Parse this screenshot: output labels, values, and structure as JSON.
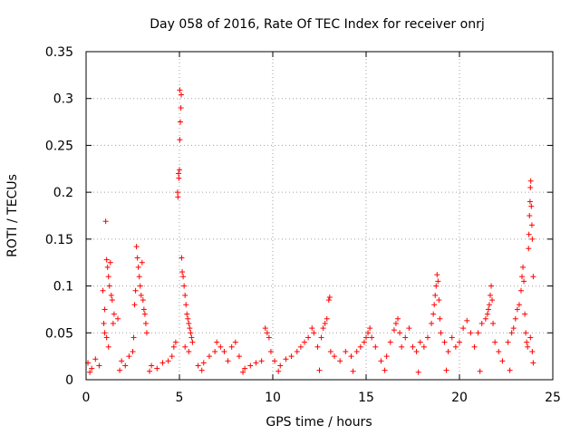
{
  "chart_data": {
    "type": "scatter",
    "title": "Day 058 of 2016, Rate Of TEC Index for receiver onrj",
    "xlabel": "GPS time / hours",
    "ylabel": "ROTI / TECUs",
    "xlim": [
      0,
      25
    ],
    "ylim": [
      0,
      0.35
    ],
    "xticks": [
      0,
      5,
      10,
      15,
      20,
      25
    ],
    "xtick_labels": [
      "0",
      "5",
      "10",
      "15",
      "20",
      "25"
    ],
    "yticks": [
      0,
      0.05,
      0.1,
      0.15,
      0.2,
      0.25,
      0.3,
      0.35
    ],
    "ytick_labels": [
      "0",
      "0.05",
      "0.1",
      "0.15",
      "0.2",
      "0.25",
      "0.3",
      "0.35"
    ],
    "grid": true,
    "marker": "+",
    "marker_color": "#ff0000",
    "series": [
      {
        "name": "ROTI",
        "points": [
          [
            0.1,
            0.018
          ],
          [
            0.3,
            0.012
          ],
          [
            0.5,
            0.022
          ],
          [
            0.7,
            0.015
          ],
          [
            0.9,
            0.095
          ],
          [
            1.0,
            0.075
          ],
          [
            1.05,
            0.169
          ],
          [
            1.1,
            0.128
          ],
          [
            1.15,
            0.12
          ],
          [
            1.2,
            0.11
          ],
          [
            1.25,
            0.1
          ],
          [
            1.3,
            0.125
          ],
          [
            1.35,
            0.09
          ],
          [
            1.4,
            0.085
          ],
          [
            1.45,
            0.06
          ],
          [
            1.5,
            0.07
          ],
          [
            1.0,
            0.05
          ],
          [
            1.1,
            0.045
          ],
          [
            1.2,
            0.035
          ],
          [
            0.95,
            0.06
          ],
          [
            1.7,
            0.065
          ],
          [
            1.9,
            0.02
          ],
          [
            2.1,
            0.015
          ],
          [
            2.3,
            0.025
          ],
          [
            2.5,
            0.03
          ],
          [
            2.7,
            0.142
          ],
          [
            2.75,
            0.13
          ],
          [
            2.8,
            0.12
          ],
          [
            2.85,
            0.11
          ],
          [
            2.9,
            0.1
          ],
          [
            2.95,
            0.09
          ],
          [
            3.0,
            0.125
          ],
          [
            3.05,
            0.085
          ],
          [
            3.1,
            0.075
          ],
          [
            3.15,
            0.07
          ],
          [
            3.2,
            0.06
          ],
          [
            3.25,
            0.05
          ],
          [
            2.6,
            0.08
          ],
          [
            2.65,
            0.095
          ],
          [
            2.55,
            0.045
          ],
          [
            3.5,
            0.015
          ],
          [
            3.8,
            0.012
          ],
          [
            4.1,
            0.018
          ],
          [
            4.4,
            0.02
          ],
          [
            4.6,
            0.025
          ],
          [
            4.7,
            0.035
          ],
          [
            4.8,
            0.04
          ],
          [
            4.9,
            0.2
          ],
          [
            4.92,
            0.195
          ],
          [
            4.95,
            0.22
          ],
          [
            4.97,
            0.215
          ],
          [
            5.0,
            0.224
          ],
          [
            5.02,
            0.256
          ],
          [
            5.05,
            0.275
          ],
          [
            5.08,
            0.29
          ],
          [
            5.1,
            0.304
          ],
          [
            5.02,
            0.309
          ],
          [
            5.12,
            0.13
          ],
          [
            5.15,
            0.115
          ],
          [
            5.2,
            0.11
          ],
          [
            5.25,
            0.1
          ],
          [
            5.3,
            0.09
          ],
          [
            5.35,
            0.08
          ],
          [
            5.4,
            0.07
          ],
          [
            5.45,
            0.065
          ],
          [
            5.5,
            0.06
          ],
          [
            5.55,
            0.055
          ],
          [
            5.6,
            0.05
          ],
          [
            5.65,
            0.045
          ],
          [
            5.7,
            0.04
          ],
          [
            5.3,
            0.035
          ],
          [
            5.5,
            0.03
          ],
          [
            6.0,
            0.015
          ],
          [
            6.3,
            0.018
          ],
          [
            6.6,
            0.025
          ],
          [
            6.9,
            0.03
          ],
          [
            7.0,
            0.04
          ],
          [
            7.2,
            0.035
          ],
          [
            7.4,
            0.03
          ],
          [
            7.6,
            0.02
          ],
          [
            7.8,
            0.035
          ],
          [
            8.0,
            0.04
          ],
          [
            8.2,
            0.025
          ],
          [
            8.5,
            0.012
          ],
          [
            8.8,
            0.015
          ],
          [
            9.1,
            0.018
          ],
          [
            9.4,
            0.02
          ],
          [
            9.6,
            0.055
          ],
          [
            9.7,
            0.05
          ],
          [
            9.8,
            0.045
          ],
          [
            9.9,
            0.03
          ],
          [
            10.1,
            0.02
          ],
          [
            10.4,
            0.015
          ],
          [
            10.7,
            0.022
          ],
          [
            11.0,
            0.025
          ],
          [
            11.3,
            0.03
          ],
          [
            11.5,
            0.035
          ],
          [
            11.7,
            0.04
          ],
          [
            11.9,
            0.045
          ],
          [
            12.1,
            0.055
          ],
          [
            12.2,
            0.05
          ],
          [
            12.4,
            0.035
          ],
          [
            12.6,
            0.045
          ],
          [
            12.7,
            0.055
          ],
          [
            12.8,
            0.06
          ],
          [
            12.9,
            0.065
          ],
          [
            13.0,
            0.085
          ],
          [
            13.05,
            0.088
          ],
          [
            13.1,
            0.03
          ],
          [
            13.3,
            0.025
          ],
          [
            13.6,
            0.02
          ],
          [
            13.9,
            0.03
          ],
          [
            14.2,
            0.025
          ],
          [
            14.5,
            0.03
          ],
          [
            14.7,
            0.035
          ],
          [
            14.9,
            0.04
          ],
          [
            15.0,
            0.045
          ],
          [
            15.1,
            0.05
          ],
          [
            15.2,
            0.055
          ],
          [
            15.3,
            0.045
          ],
          [
            15.5,
            0.035
          ],
          [
            15.8,
            0.02
          ],
          [
            16.1,
            0.025
          ],
          [
            16.3,
            0.04
          ],
          [
            16.5,
            0.053
          ],
          [
            16.6,
            0.06
          ],
          [
            16.7,
            0.065
          ],
          [
            16.8,
            0.05
          ],
          [
            16.9,
            0.035
          ],
          [
            17.1,
            0.045
          ],
          [
            17.3,
            0.055
          ],
          [
            17.5,
            0.035
          ],
          [
            17.7,
            0.03
          ],
          [
            17.9,
            0.04
          ],
          [
            18.1,
            0.035
          ],
          [
            18.3,
            0.045
          ],
          [
            18.5,
            0.06
          ],
          [
            18.6,
            0.07
          ],
          [
            18.65,
            0.08
          ],
          [
            18.7,
            0.09
          ],
          [
            18.75,
            0.1
          ],
          [
            18.8,
            0.112
          ],
          [
            18.85,
            0.105
          ],
          [
            18.9,
            0.085
          ],
          [
            18.95,
            0.065
          ],
          [
            19.0,
            0.05
          ],
          [
            19.2,
            0.04
          ],
          [
            19.4,
            0.03
          ],
          [
            19.6,
            0.045
          ],
          [
            19.8,
            0.035
          ],
          [
            20.0,
            0.04
          ],
          [
            20.2,
            0.055
          ],
          [
            20.4,
            0.063
          ],
          [
            20.6,
            0.05
          ],
          [
            20.8,
            0.035
          ],
          [
            21.0,
            0.05
          ],
          [
            21.2,
            0.06
          ],
          [
            21.4,
            0.065
          ],
          [
            21.5,
            0.07
          ],
          [
            21.55,
            0.075
          ],
          [
            21.6,
            0.08
          ],
          [
            21.65,
            0.09
          ],
          [
            21.7,
            0.1
          ],
          [
            21.75,
            0.085
          ],
          [
            21.8,
            0.06
          ],
          [
            21.9,
            0.04
          ],
          [
            22.1,
            0.03
          ],
          [
            22.3,
            0.02
          ],
          [
            22.6,
            0.04
          ],
          [
            22.8,
            0.05
          ],
          [
            22.9,
            0.055
          ],
          [
            23.0,
            0.065
          ],
          [
            23.1,
            0.075
          ],
          [
            23.2,
            0.08
          ],
          [
            23.3,
            0.095
          ],
          [
            23.35,
            0.11
          ],
          [
            23.4,
            0.12
          ],
          [
            23.45,
            0.105
          ],
          [
            23.5,
            0.07
          ],
          [
            23.55,
            0.05
          ],
          [
            23.6,
            0.04
          ],
          [
            23.65,
            0.035
          ],
          [
            23.7,
            0.14
          ],
          [
            23.72,
            0.155
          ],
          [
            23.75,
            0.175
          ],
          [
            23.78,
            0.19
          ],
          [
            23.8,
            0.205
          ],
          [
            23.82,
            0.212
          ],
          [
            23.85,
            0.185
          ],
          [
            23.88,
            0.165
          ],
          [
            23.9,
            0.15
          ],
          [
            23.95,
            0.11
          ],
          [
            23.8,
            0.045
          ],
          [
            23.9,
            0.03
          ],
          [
            23.95,
            0.018
          ],
          [
            0.2,
            0.008
          ],
          [
            1.8,
            0.01
          ],
          [
            3.4,
            0.009
          ],
          [
            6.2,
            0.01
          ],
          [
            8.4,
            0.008
          ],
          [
            10.3,
            0.009
          ],
          [
            12.5,
            0.01
          ],
          [
            14.3,
            0.009
          ],
          [
            16.0,
            0.01
          ],
          [
            17.8,
            0.008
          ],
          [
            19.3,
            0.01
          ],
          [
            21.1,
            0.009
          ],
          [
            22.7,
            0.01
          ]
        ]
      }
    ]
  }
}
